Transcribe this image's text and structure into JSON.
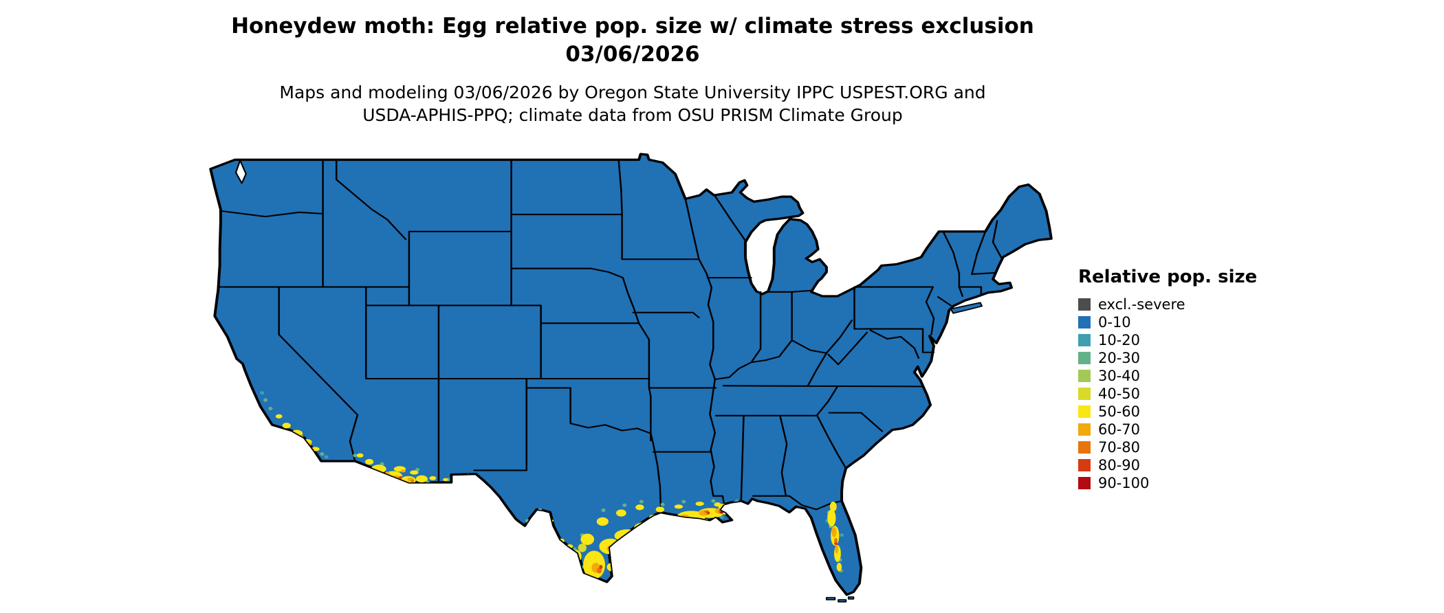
{
  "title": {
    "line1": "Honeydew moth: Egg relative pop. size w/ climate stress exclusion",
    "line2": "03/06/2026"
  },
  "subtitle": {
    "line1": "Maps and modeling 03/06/2026 by Oregon State University IPPC USPEST.ORG and",
    "line2": "USDA-APHIS-PPQ; climate data from OSU PRISM Climate Group"
  },
  "legend": {
    "title": "Relative pop. size",
    "items": [
      {
        "label": "excl.-severe",
        "color": "#4d4d4d"
      },
      {
        "label": "0-10",
        "color": "#2171b5"
      },
      {
        "label": "10-20",
        "color": "#3f9fae"
      },
      {
        "label": "20-30",
        "color": "#63b188"
      },
      {
        "label": "30-40",
        "color": "#a3c857"
      },
      {
        "label": "40-50",
        "color": "#d9d928"
      },
      {
        "label": "50-60",
        "color": "#fae614"
      },
      {
        "label": "60-70",
        "color": "#f2a90e"
      },
      {
        "label": "70-80",
        "color": "#e7750b"
      },
      {
        "label": "80-90",
        "color": "#d63c10"
      },
      {
        "label": "90-100",
        "color": "#b20b12"
      }
    ]
  }
}
